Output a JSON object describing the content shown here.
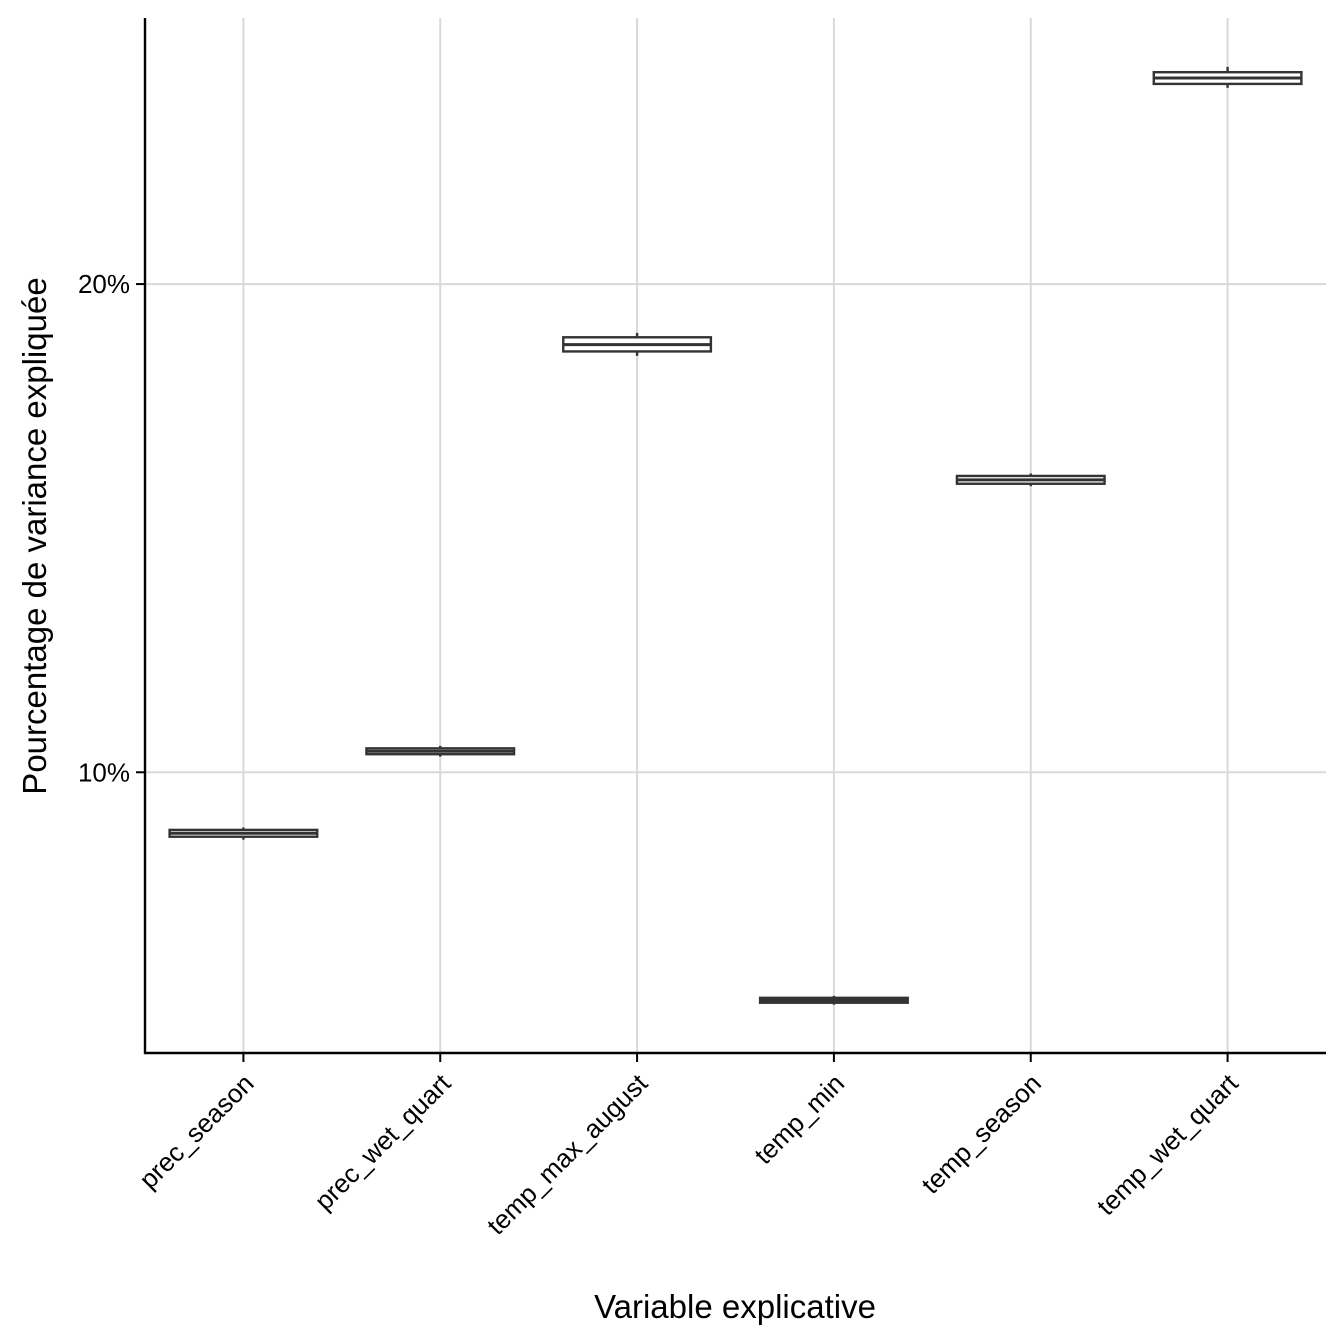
{
  "chart_data": {
    "type": "boxplot",
    "xlabel": "Variable explicative",
    "ylabel": "Pourcentage de variance expliquée",
    "categories": [
      "prec_season",
      "prec_wet_quart",
      "temp_max_august",
      "temp_min",
      "temp_season",
      "temp_wet_quart"
    ],
    "boxes": [
      {
        "category": "prec_season",
        "min": 8.62,
        "q1": 8.68,
        "median": 8.75,
        "q3": 8.82,
        "max": 8.87
      },
      {
        "category": "prec_wet_quart",
        "min": 10.32,
        "q1": 10.37,
        "median": 10.43,
        "q3": 10.49,
        "max": 10.54
      },
      {
        "category": "temp_max_august",
        "min": 18.53,
        "q1": 18.62,
        "median": 18.76,
        "q3": 18.91,
        "max": 19.0
      },
      {
        "category": "temp_min",
        "min": 5.24,
        "q1": 5.28,
        "median": 5.33,
        "q3": 5.38,
        "max": 5.42
      },
      {
        "category": "temp_season",
        "min": 15.86,
        "q1": 15.91,
        "median": 15.99,
        "q3": 16.07,
        "max": 16.12
      },
      {
        "category": "temp_wet_quart",
        "min": 24.02,
        "q1": 24.1,
        "median": 24.22,
        "q3": 24.34,
        "max": 24.45
      }
    ],
    "yticks": [
      10,
      20
    ],
    "ytick_labels": [
      "10%",
      "20%"
    ],
    "ylim": [
      4.25,
      25.45
    ],
    "grid": true,
    "legend": "none"
  }
}
